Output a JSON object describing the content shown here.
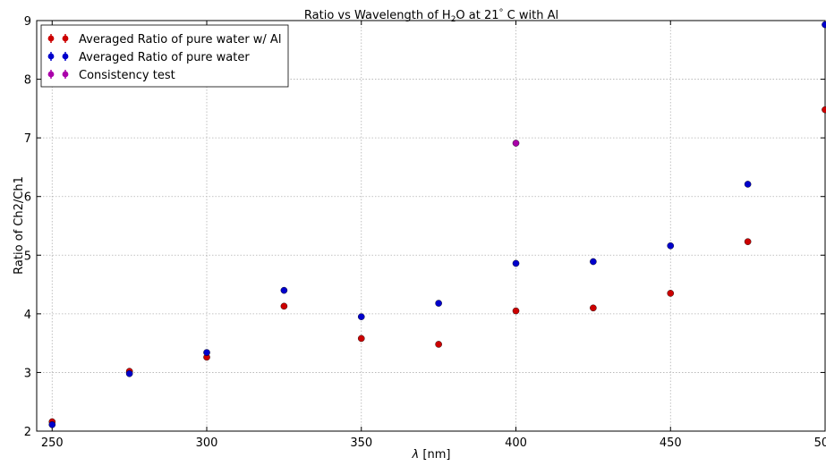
{
  "chart_data": {
    "type": "scatter",
    "title": "Ratio vs Wavelength of H2O at 21° C with Al",
    "title_parts": {
      "before_sub": "Ratio vs Wavelength of H",
      "sub": "2",
      "after_sub": "O at 21",
      "degree": "°",
      "after_degree": " C with Al"
    },
    "xlabel": "λ [nm]",
    "xlabel_parts": {
      "symbol": "λ",
      "unit": " [nm]"
    },
    "ylabel": "Ratio of Ch2/Ch1",
    "xlim": [
      245,
      500
    ],
    "ylim": [
      2,
      9
    ],
    "xticks": [
      250,
      300,
      350,
      400,
      450,
      500
    ],
    "yticks": [
      2,
      3,
      4,
      5,
      6,
      7,
      8,
      9
    ],
    "grid": true,
    "legend_position": "top-left",
    "series": [
      {
        "name": "Averaged Ratio of pure water w/ Al",
        "color": "#cc0000",
        "x": [
          250,
          275,
          300,
          325,
          350,
          375,
          400,
          425,
          450,
          475,
          500
        ],
        "y": [
          2.16,
          3.02,
          3.26,
          4.13,
          3.58,
          3.48,
          4.05,
          4.1,
          4.35,
          5.23,
          7.48
        ]
      },
      {
        "name": "Averaged Ratio of pure water",
        "color": "#0000cc",
        "x": [
          250,
          275,
          300,
          325,
          350,
          375,
          400,
          425,
          450,
          475,
          500
        ],
        "y": [
          2.11,
          2.98,
          3.34,
          4.4,
          3.95,
          4.18,
          4.86,
          4.89,
          5.16,
          6.21,
          8.93
        ]
      },
      {
        "name": "Consistency test",
        "color": "#aa00aa",
        "x": [
          400
        ],
        "y": [
          6.91
        ]
      }
    ]
  }
}
